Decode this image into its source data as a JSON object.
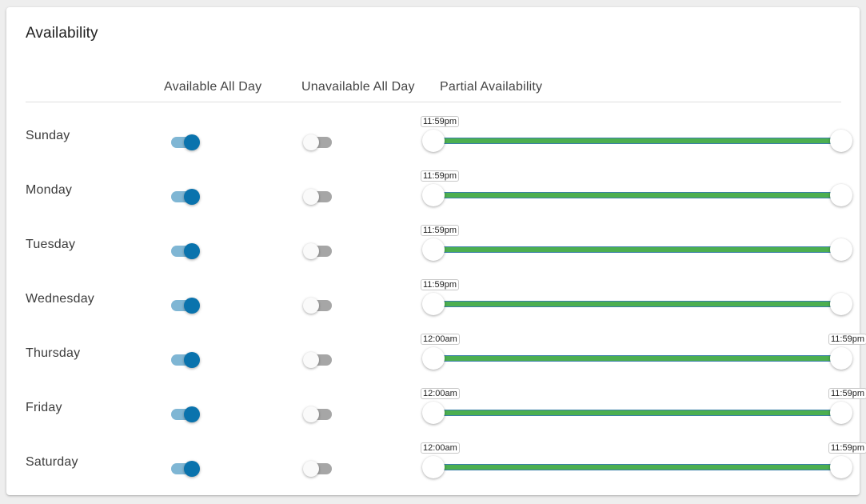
{
  "card": {
    "title": "Availability"
  },
  "headers": {
    "available_all_day": "Available All Day",
    "unavailable_all_day": "Unavailable All Day",
    "partial_availability": "Partial Availability"
  },
  "colors": {
    "toggle_on": "#0a73ad",
    "toggle_on_track": "#7fb6d4",
    "toggle_off_track": "#a6a6a6",
    "slider_range": "#4caf50"
  },
  "days": [
    {
      "name": "Sunday",
      "available_all_day": true,
      "unavailable_all_day": false,
      "start_label": "11:59pm",
      "end_label": ""
    },
    {
      "name": "Monday",
      "available_all_day": true,
      "unavailable_all_day": false,
      "start_label": "11:59pm",
      "end_label": ""
    },
    {
      "name": "Tuesday",
      "available_all_day": true,
      "unavailable_all_day": false,
      "start_label": "11:59pm",
      "end_label": ""
    },
    {
      "name": "Wednesday",
      "available_all_day": true,
      "unavailable_all_day": false,
      "start_label": "11:59pm",
      "end_label": ""
    },
    {
      "name": "Thursday",
      "available_all_day": true,
      "unavailable_all_day": false,
      "start_label": "12:00am",
      "end_label": "11:59pm"
    },
    {
      "name": "Friday",
      "available_all_day": true,
      "unavailable_all_day": false,
      "start_label": "12:00am",
      "end_label": "11:59pm"
    },
    {
      "name": "Saturday",
      "available_all_day": true,
      "unavailable_all_day": false,
      "start_label": "12:00am",
      "end_label": "11:59pm"
    }
  ]
}
